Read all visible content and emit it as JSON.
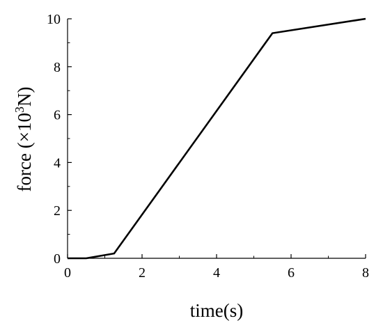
{
  "chart_data": {
    "type": "line",
    "title": "",
    "xlabel": "time(s)",
    "ylabel_parts": {
      "prefix": "force (×10",
      "superscript": "3",
      "suffix": "N)"
    },
    "xlim": [
      0,
      8
    ],
    "ylim": [
      0,
      10
    ],
    "xticks": [
      0,
      2,
      4,
      6,
      8
    ],
    "yticks": [
      0,
      2,
      4,
      6,
      8,
      10
    ],
    "x_minor_ticks": [
      1,
      3,
      5,
      7
    ],
    "y_minor_ticks": [
      1,
      3,
      5,
      7,
      9
    ],
    "grid": false,
    "legend": "none",
    "series": [
      {
        "x": [
          0,
          0.5,
          1.25,
          5.5,
          8
        ],
        "y": [
          0,
          0,
          0.2,
          9.4,
          10
        ]
      }
    ],
    "line_color": "#000000"
  }
}
